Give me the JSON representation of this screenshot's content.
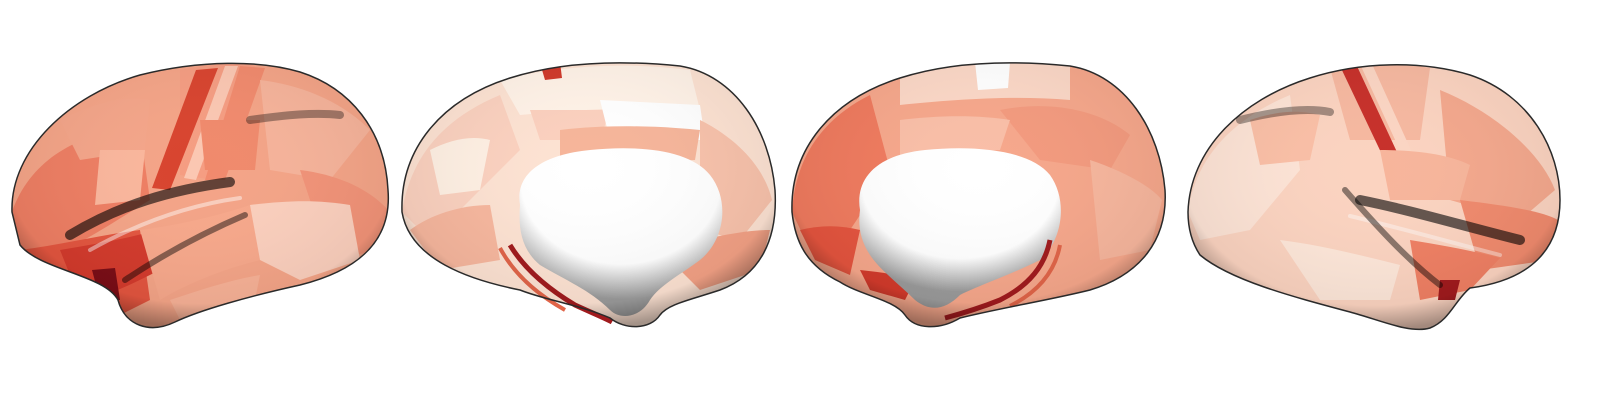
{
  "figure": {
    "views": [
      {
        "name": "left-lateral"
      },
      {
        "name": "left-medial"
      },
      {
        "name": "right-medial"
      },
      {
        "name": "right-lateral"
      }
    ],
    "colors": {
      "background": "#ffffff",
      "colormap": [
        "#fff7ee",
        "#fde0cc",
        "#fbb9a0",
        "#f7906f",
        "#ee6a4e",
        "#d4392c",
        "#a81a1c",
        "#6b0a12"
      ],
      "medial_wall": "#ffffff",
      "outline": "#2a2a2a"
    }
  }
}
